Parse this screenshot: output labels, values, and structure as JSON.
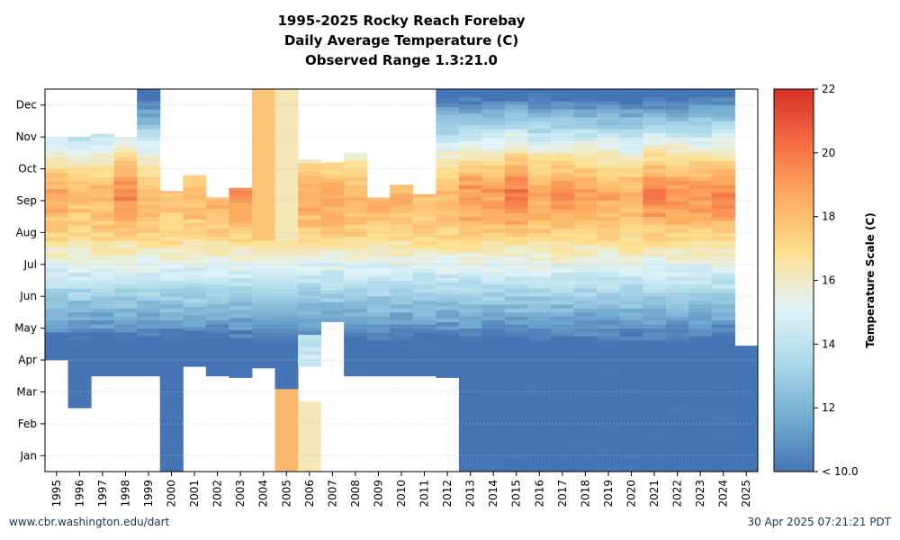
{
  "chart_data": {
    "type": "heatmap",
    "title": [
      "1995-2025 Rocky Reach Forebay",
      "Daily Average Temperature (C)",
      "Observed Range 1.3:21.0"
    ],
    "x": [
      "1995",
      "1996",
      "1997",
      "1998",
      "1999",
      "2000",
      "2001",
      "2002",
      "2003",
      "2004",
      "2005",
      "2006",
      "2007",
      "2008",
      "2009",
      "2010",
      "2011",
      "2012",
      "2013",
      "2014",
      "2015",
      "2016",
      "2017",
      "2018",
      "2019",
      "2020",
      "2021",
      "2022",
      "2023",
      "2024",
      "2025"
    ],
    "y_months": [
      "Jan",
      "Feb",
      "Mar",
      "Apr",
      "May",
      "Jun",
      "Jul",
      "Aug",
      "Sep",
      "Oct",
      "Nov",
      "Dec"
    ],
    "colorbar": {
      "label": "Temperature Scale (C)",
      "min": 10,
      "max": 22,
      "ticks": [
        {
          "value": 22,
          "label": "22"
        },
        {
          "value": 20,
          "label": "20"
        },
        {
          "value": 18,
          "label": "18"
        },
        {
          "value": 16,
          "label": "16"
        },
        {
          "value": 14,
          "label": "14"
        },
        {
          "value": 12,
          "label": "12"
        },
        {
          "value": 10,
          "label": "< 10.0"
        }
      ],
      "colors": [
        "#4575b4",
        "#74add1",
        "#abd9e9",
        "#e0f3f8",
        "#fee090",
        "#fdae61",
        "#f46d43",
        "#d73027"
      ]
    },
    "grid": true,
    "years": [
      {
        "year": "1995",
        "start": 3.5,
        "end": 10.5,
        "peak": 18.5,
        "note": "winter stripes"
      },
      {
        "year": "1996",
        "start": 2.0,
        "end": 10.5,
        "peak": 18.0
      },
      {
        "year": "1997",
        "start": 3.0,
        "end": 10.6,
        "peak": 18.2
      },
      {
        "year": "1998",
        "start": 3.0,
        "end": 10.5,
        "peak": 19.5
      },
      {
        "year": "1999",
        "start": 3.0,
        "end": 12.0,
        "peak": 18.2,
        "fillFromTop": true
      },
      {
        "year": "2000",
        "start": 0.0,
        "end": 8.8,
        "peak": 17.8
      },
      {
        "year": "2001",
        "start": 3.3,
        "end": 9.3,
        "peak": 18.2
      },
      {
        "year": "2002",
        "start": 3.0,
        "end": 8.6,
        "peak": 18.4
      },
      {
        "year": "2003",
        "start": 2.95,
        "end": 8.9,
        "peak": 19.2
      },
      {
        "year": "2004",
        "start": 3.25,
        "end": 12.0,
        "peak": 18.6,
        "solidLate": 17.8
      },
      {
        "year": "2005",
        "start": 2.6,
        "end": 12.0,
        "peak": 18.2,
        "solid": [
          0.0,
          2.6,
          18.2
        ],
        "solidLate": 16.2
      },
      {
        "year": "2006",
        "start": 3.3,
        "end": 9.8,
        "peak": 18.6,
        "solid": [
          0.0,
          2.2,
          16.2
        ],
        "lightEarly": 14.2
      },
      {
        "year": "2007",
        "start": 4.7,
        "end": 9.7,
        "peak": 18.8
      },
      {
        "year": "2008",
        "start": 3.0,
        "end": 10.0,
        "peak": 18.4
      },
      {
        "year": "2009",
        "start": 3.0,
        "end": 8.6,
        "peak": 18.4
      },
      {
        "year": "2010",
        "start": 3.0,
        "end": 9.0,
        "peak": 18.3
      },
      {
        "year": "2011",
        "start": 3.0,
        "end": 8.7,
        "peak": 18.0
      },
      {
        "year": "2012",
        "start": 2.95,
        "end": 12.0,
        "peak": 18.3
      },
      {
        "year": "2013",
        "start": 0.0,
        "end": 12.0,
        "peak": 19.2
      },
      {
        "year": "2014",
        "start": 0.0,
        "end": 12.0,
        "peak": 19.0
      },
      {
        "year": "2015",
        "start": 0.0,
        "end": 12.0,
        "peak": 20.0
      },
      {
        "year": "2016",
        "start": 0.0,
        "end": 12.0,
        "peak": 18.8
      },
      {
        "year": "2017",
        "start": 0.0,
        "end": 12.0,
        "peak": 19.2
      },
      {
        "year": "2018",
        "start": 0.0,
        "end": 12.0,
        "peak": 19.1
      },
      {
        "year": "2019",
        "start": 0.0,
        "end": 12.0,
        "peak": 18.7
      },
      {
        "year": "2020",
        "start": 0.0,
        "end": 12.0,
        "peak": 18.4
      },
      {
        "year": "2021",
        "start": 0.0,
        "end": 12.0,
        "peak": 19.6
      },
      {
        "year": "2022",
        "start": 0.0,
        "end": 12.0,
        "peak": 19.2
      },
      {
        "year": "2023",
        "start": 0.0,
        "end": 12.0,
        "peak": 19.1
      },
      {
        "year": "2024",
        "start": 0.0,
        "end": 12.0,
        "peak": 19.6
      },
      {
        "year": "2025",
        "start": 0.0,
        "end": 3.95,
        "peak": 10.0
      }
    ]
  },
  "footer": {
    "left": "www.cbr.washington.edu/dart",
    "right": "30 Apr 2025 07:21:21 PDT"
  }
}
